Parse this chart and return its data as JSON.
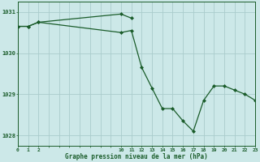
{
  "background_color": "#cce8e8",
  "plot_bg_color": "#cce8e8",
  "grid_color": "#aacccc",
  "line_color": "#1a5c2a",
  "marker_color": "#1a5c2a",
  "series1_x": [
    0,
    1,
    2,
    10,
    11,
    12,
    13,
    14,
    15,
    16,
    17,
    18,
    19,
    20,
    21,
    22,
    23
  ],
  "series1_y": [
    1030.65,
    1030.65,
    1030.75,
    1030.5,
    1030.55,
    1029.65,
    1029.15,
    1028.65,
    1028.65,
    1028.35,
    1028.1,
    1028.85,
    1029.2,
    1029.2,
    1029.1,
    1029.0,
    1028.85
  ],
  "series2_x": [
    0,
    1,
    2,
    10,
    11
  ],
  "series2_y": [
    1030.65,
    1030.65,
    1030.75,
    1030.95,
    1030.85
  ],
  "xlim": [
    0,
    23
  ],
  "ylim": [
    1027.75,
    1031.25
  ],
  "yticks": [
    1028,
    1029,
    1030,
    1031
  ],
  "xlabel": "Graphe pression niveau de la mer (hPa)"
}
